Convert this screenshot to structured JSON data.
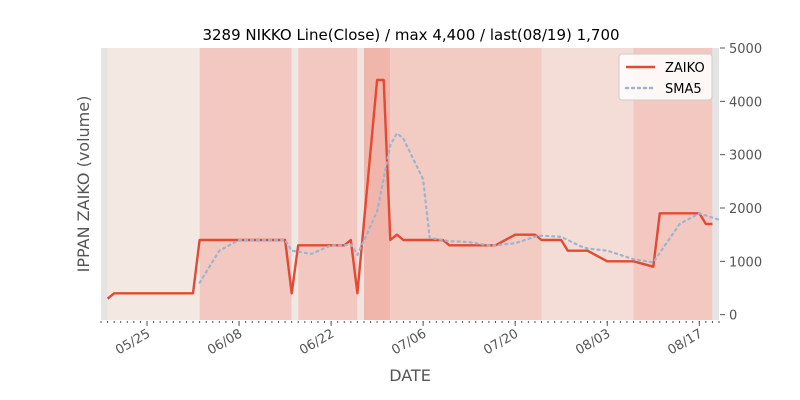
{
  "chart_data": {
    "type": "line",
    "title": "3289 NIKKO Line(Close) / max 4,400 / last(08/19) 1,700",
    "xlabel": "DATE",
    "ylabel": "IPPAN ZAIKO (volume)",
    "y_axis_position": "right",
    "ylim": [
      -100,
      5000
    ],
    "y_ticks": [
      0,
      1000,
      2000,
      3000,
      4000,
      5000
    ],
    "x_ticks": [
      "05/25",
      "06/08",
      "06/22",
      "07/06",
      "07/20",
      "08/03",
      "08/17"
    ],
    "x_start": "05/18",
    "x_end": "08/20",
    "grid": false,
    "legend_position": "top-right",
    "colors": {
      "ZAIKO": "#E24A33",
      "SMA5": "#9DB4CF"
    },
    "series": [
      {
        "name": "ZAIKO",
        "style": "solid",
        "points": [
          [
            "05/19",
            300
          ],
          [
            "05/20",
            400
          ],
          [
            "05/21",
            400
          ],
          [
            "05/22",
            400
          ],
          [
            "05/25",
            400
          ],
          [
            "05/26",
            400
          ],
          [
            "05/27",
            400
          ],
          [
            "05/28",
            400
          ],
          [
            "05/29",
            400
          ],
          [
            "06/01",
            400
          ],
          [
            "06/02",
            1400
          ],
          [
            "06/03",
            1400
          ],
          [
            "06/04",
            1400
          ],
          [
            "06/05",
            1400
          ],
          [
            "06/08",
            1400
          ],
          [
            "06/09",
            1400
          ],
          [
            "06/10",
            1400
          ],
          [
            "06/11",
            1400
          ],
          [
            "06/12",
            1400
          ],
          [
            "06/15",
            1400
          ],
          [
            "06/16",
            400
          ],
          [
            "06/17",
            1300
          ],
          [
            "06/18",
            1300
          ],
          [
            "06/19",
            1300
          ],
          [
            "06/22",
            1300
          ],
          [
            "06/23",
            1300
          ],
          [
            "06/24",
            1300
          ],
          [
            "06/25",
            1400
          ],
          [
            "06/26",
            400
          ],
          [
            "06/29",
            4400
          ],
          [
            "06/30",
            4400
          ],
          [
            "07/01",
            1400
          ],
          [
            "07/02",
            1500
          ],
          [
            "07/03",
            1400
          ],
          [
            "07/06",
            1400
          ],
          [
            "07/07",
            1400
          ],
          [
            "07/08",
            1400
          ],
          [
            "07/09",
            1400
          ],
          [
            "07/10",
            1300
          ],
          [
            "07/13",
            1300
          ],
          [
            "07/14",
            1300
          ],
          [
            "07/15",
            1300
          ],
          [
            "07/16",
            1300
          ],
          [
            "07/17",
            1300
          ],
          [
            "07/20",
            1500
          ],
          [
            "07/21",
            1500
          ],
          [
            "07/22",
            1500
          ],
          [
            "07/23",
            1500
          ],
          [
            "07/24",
            1400
          ],
          [
            "07/27",
            1400
          ],
          [
            "07/28",
            1200
          ],
          [
            "07/29",
            1200
          ],
          [
            "07/30",
            1200
          ],
          [
            "07/31",
            1200
          ],
          [
            "08/03",
            1000
          ],
          [
            "08/04",
            1000
          ],
          [
            "08/05",
            1000
          ],
          [
            "08/06",
            1000
          ],
          [
            "08/07",
            1000
          ],
          [
            "08/10",
            900
          ],
          [
            "08/11",
            1900
          ],
          [
            "08/12",
            1900
          ],
          [
            "08/13",
            1900
          ],
          [
            "08/14",
            1900
          ],
          [
            "08/17",
            1900
          ],
          [
            "08/18",
            1700
          ],
          [
            "08/19",
            1700
          ]
        ]
      },
      {
        "name": "SMA5",
        "style": "dotted",
        "points": [
          [
            "06/02",
            600
          ],
          [
            "06/03",
            800
          ],
          [
            "06/04",
            1000
          ],
          [
            "06/05",
            1200
          ],
          [
            "06/08",
            1400
          ],
          [
            "06/09",
            1400
          ],
          [
            "06/10",
            1400
          ],
          [
            "06/11",
            1400
          ],
          [
            "06/12",
            1400
          ],
          [
            "06/15",
            1400
          ],
          [
            "06/16",
            1200
          ],
          [
            "06/17",
            1180
          ],
          [
            "06/18",
            1160
          ],
          [
            "06/19",
            1140
          ],
          [
            "06/22",
            1300
          ],
          [
            "06/23",
            1300
          ],
          [
            "06/24",
            1300
          ],
          [
            "06/25",
            1320
          ],
          [
            "06/26",
            1120
          ],
          [
            "06/29",
            1940
          ],
          [
            "06/30",
            2560
          ],
          [
            "07/01",
            3180
          ],
          [
            "07/02",
            3400
          ],
          [
            "07/03",
            3300
          ],
          [
            "07/06",
            2540
          ],
          [
            "07/07",
            1440
          ],
          [
            "07/08",
            1420
          ],
          [
            "07/09",
            1400
          ],
          [
            "07/10",
            1380
          ],
          [
            "07/13",
            1360
          ],
          [
            "07/14",
            1340
          ],
          [
            "07/15",
            1320
          ],
          [
            "07/16",
            1300
          ],
          [
            "07/17",
            1300
          ],
          [
            "07/20",
            1340
          ],
          [
            "07/21",
            1380
          ],
          [
            "07/22",
            1420
          ],
          [
            "07/23",
            1460
          ],
          [
            "07/24",
            1480
          ],
          [
            "07/27",
            1460
          ],
          [
            "07/28",
            1400
          ],
          [
            "07/29",
            1340
          ],
          [
            "07/30",
            1280
          ],
          [
            "07/31",
            1240
          ],
          [
            "08/03",
            1200
          ],
          [
            "08/04",
            1160
          ],
          [
            "08/05",
            1120
          ],
          [
            "08/06",
            1080
          ],
          [
            "08/07",
            1040
          ],
          [
            "08/10",
            980
          ],
          [
            "08/11",
            1160
          ],
          [
            "08/12",
            1340
          ],
          [
            "08/13",
            1520
          ],
          [
            "08/14",
            1700
          ],
          [
            "08/17",
            1900
          ],
          [
            "08/18",
            1860
          ],
          [
            "08/19",
            1820
          ],
          [
            "08/20",
            1780
          ]
        ]
      }
    ],
    "background_bands": [
      {
        "from": "05/18",
        "to": "05/19",
        "color": "#e4e4e4"
      },
      {
        "from": "05/19",
        "to": "06/02",
        "color": "#f4e9e2"
      },
      {
        "from": "06/02",
        "to": "06/16",
        "color": "#f2c8c0"
      },
      {
        "from": "06/16",
        "to": "06/17",
        "color": "#efe9e6"
      },
      {
        "from": "06/17",
        "to": "06/26",
        "color": "#f2c8c0"
      },
      {
        "from": "06/26",
        "to": "06/27",
        "color": "#efe4e0"
      },
      {
        "from": "06/27",
        "to": "07/01",
        "color": "#f0b5ab"
      },
      {
        "from": "07/01",
        "to": "07/24",
        "color": "#f2cbc3"
      },
      {
        "from": "07/24",
        "to": "08/07",
        "color": "#f4ddd6"
      },
      {
        "from": "08/07",
        "to": "08/19",
        "color": "#f2c8c0"
      },
      {
        "from": "08/19",
        "to": "08/20",
        "color": "#e4e4e4"
      }
    ]
  }
}
